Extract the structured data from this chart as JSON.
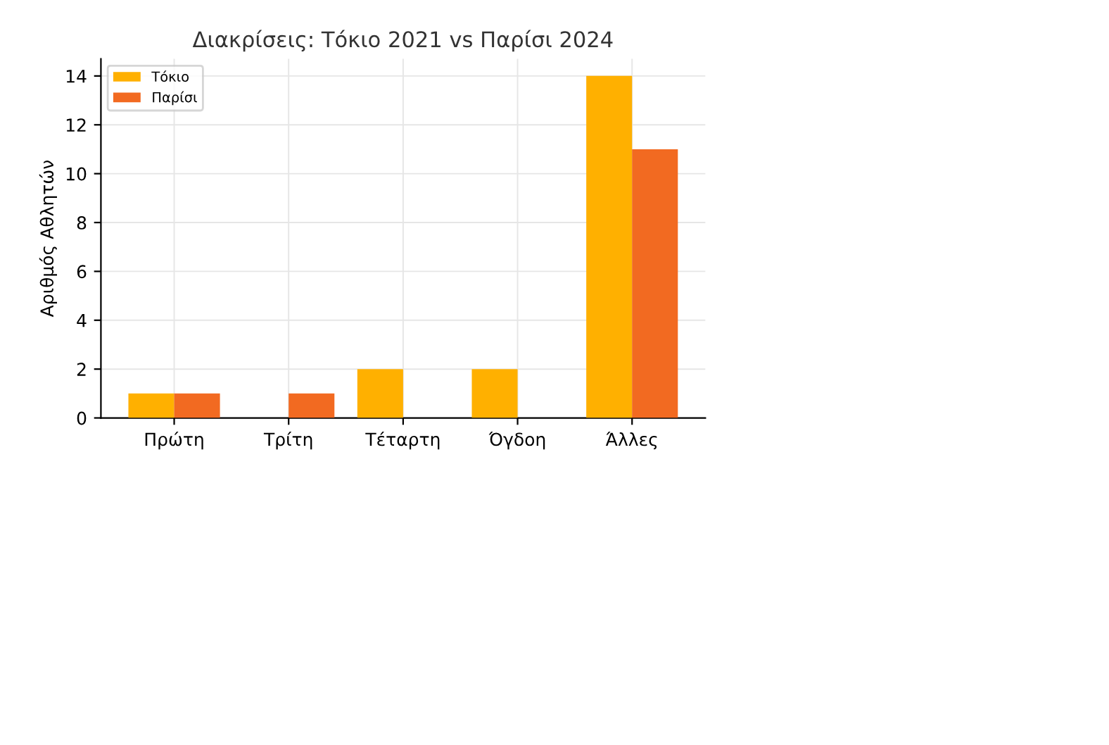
{
  "chart_data": {
    "type": "bar",
    "title": "Διακρίσεις: Τόκιο 2021 vs Παρίσι 2024",
    "ylabel": "Αριθμός Αθλητών",
    "categories": [
      "Πρώτη",
      "Τρίτη",
      "Τέταρτη",
      "Όγδοη",
      "Άλλες"
    ],
    "series": [
      {
        "name": "Τόκιο",
        "color": "#ffb000",
        "values": [
          1,
          0,
          2,
          2,
          14
        ]
      },
      {
        "name": "Παρίσι",
        "color": "#f26a21",
        "values": [
          1,
          1,
          0,
          0,
          11
        ]
      }
    ],
    "ylim": [
      0,
      14.7
    ],
    "yticks": [
      0,
      2,
      4,
      6,
      8,
      10,
      12,
      14
    ],
    "grid": true,
    "legend": "top left"
  }
}
